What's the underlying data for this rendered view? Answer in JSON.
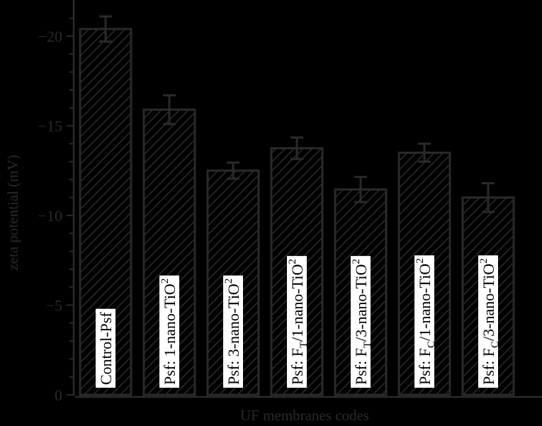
{
  "chart_data": {
    "type": "bar",
    "title": "",
    "xlabel": "UF membranes codes",
    "ylabel": "zeta potential (mV)",
    "ylim": [
      0,
      -21.5
    ],
    "yticks": [
      0,
      -5,
      -10,
      -15,
      -20
    ],
    "ytick_labels": [
      "0",
      "−5",
      "−10",
      "−15",
      "−20"
    ],
    "grid": false,
    "legend": null,
    "categories": [
      "Control-Psf",
      "Psf: 1-nano-TiO2",
      "Psf: 3-nano-TiO2",
      "Psf: FT/1-nano-TiO2",
      "Psf: FT/3-nano-TiO2",
      "Psf: FC/1-nano-TiO2",
      "Psf: FC/3-nano-TiO2"
    ],
    "values": [
      -20.4,
      -15.9,
      -12.5,
      -13.75,
      -11.45,
      -13.5,
      -11.0
    ],
    "errors": [
      0.7,
      0.8,
      0.45,
      0.6,
      0.7,
      0.5,
      0.8
    ],
    "bar_labels": [
      {
        "main": "Control-Psf",
        "sub1": "",
        "mid": "",
        "sub2": ""
      },
      {
        "main": "Psf: 1-nano-TiO",
        "sub1": "",
        "mid": "",
        "sub2": "2"
      },
      {
        "main": "Psf: 3-nano-TiO",
        "sub1": "",
        "mid": "",
        "sub2": "2"
      },
      {
        "main": "Psf: F",
        "sub1": "T",
        "mid": "/1-nano-TiO",
        "sub2": "2"
      },
      {
        "main": "Psf: F",
        "sub1": "T",
        "mid": "/3-nano-TiO",
        "sub2": "2"
      },
      {
        "main": "Psf: F",
        "sub1": "C",
        "mid": "/1-nano-TiO",
        "sub2": "2"
      },
      {
        "main": "Psf: F",
        "sub1": "C",
        "mid": "/3-nano-TiO",
        "sub2": "2"
      }
    ],
    "colors": {
      "background": "#000000",
      "bar_stroke": "#2a2a2a",
      "hatch": "#2a2a2a",
      "axis": "#2a2a2a",
      "label_box": "#ffffff"
    }
  }
}
